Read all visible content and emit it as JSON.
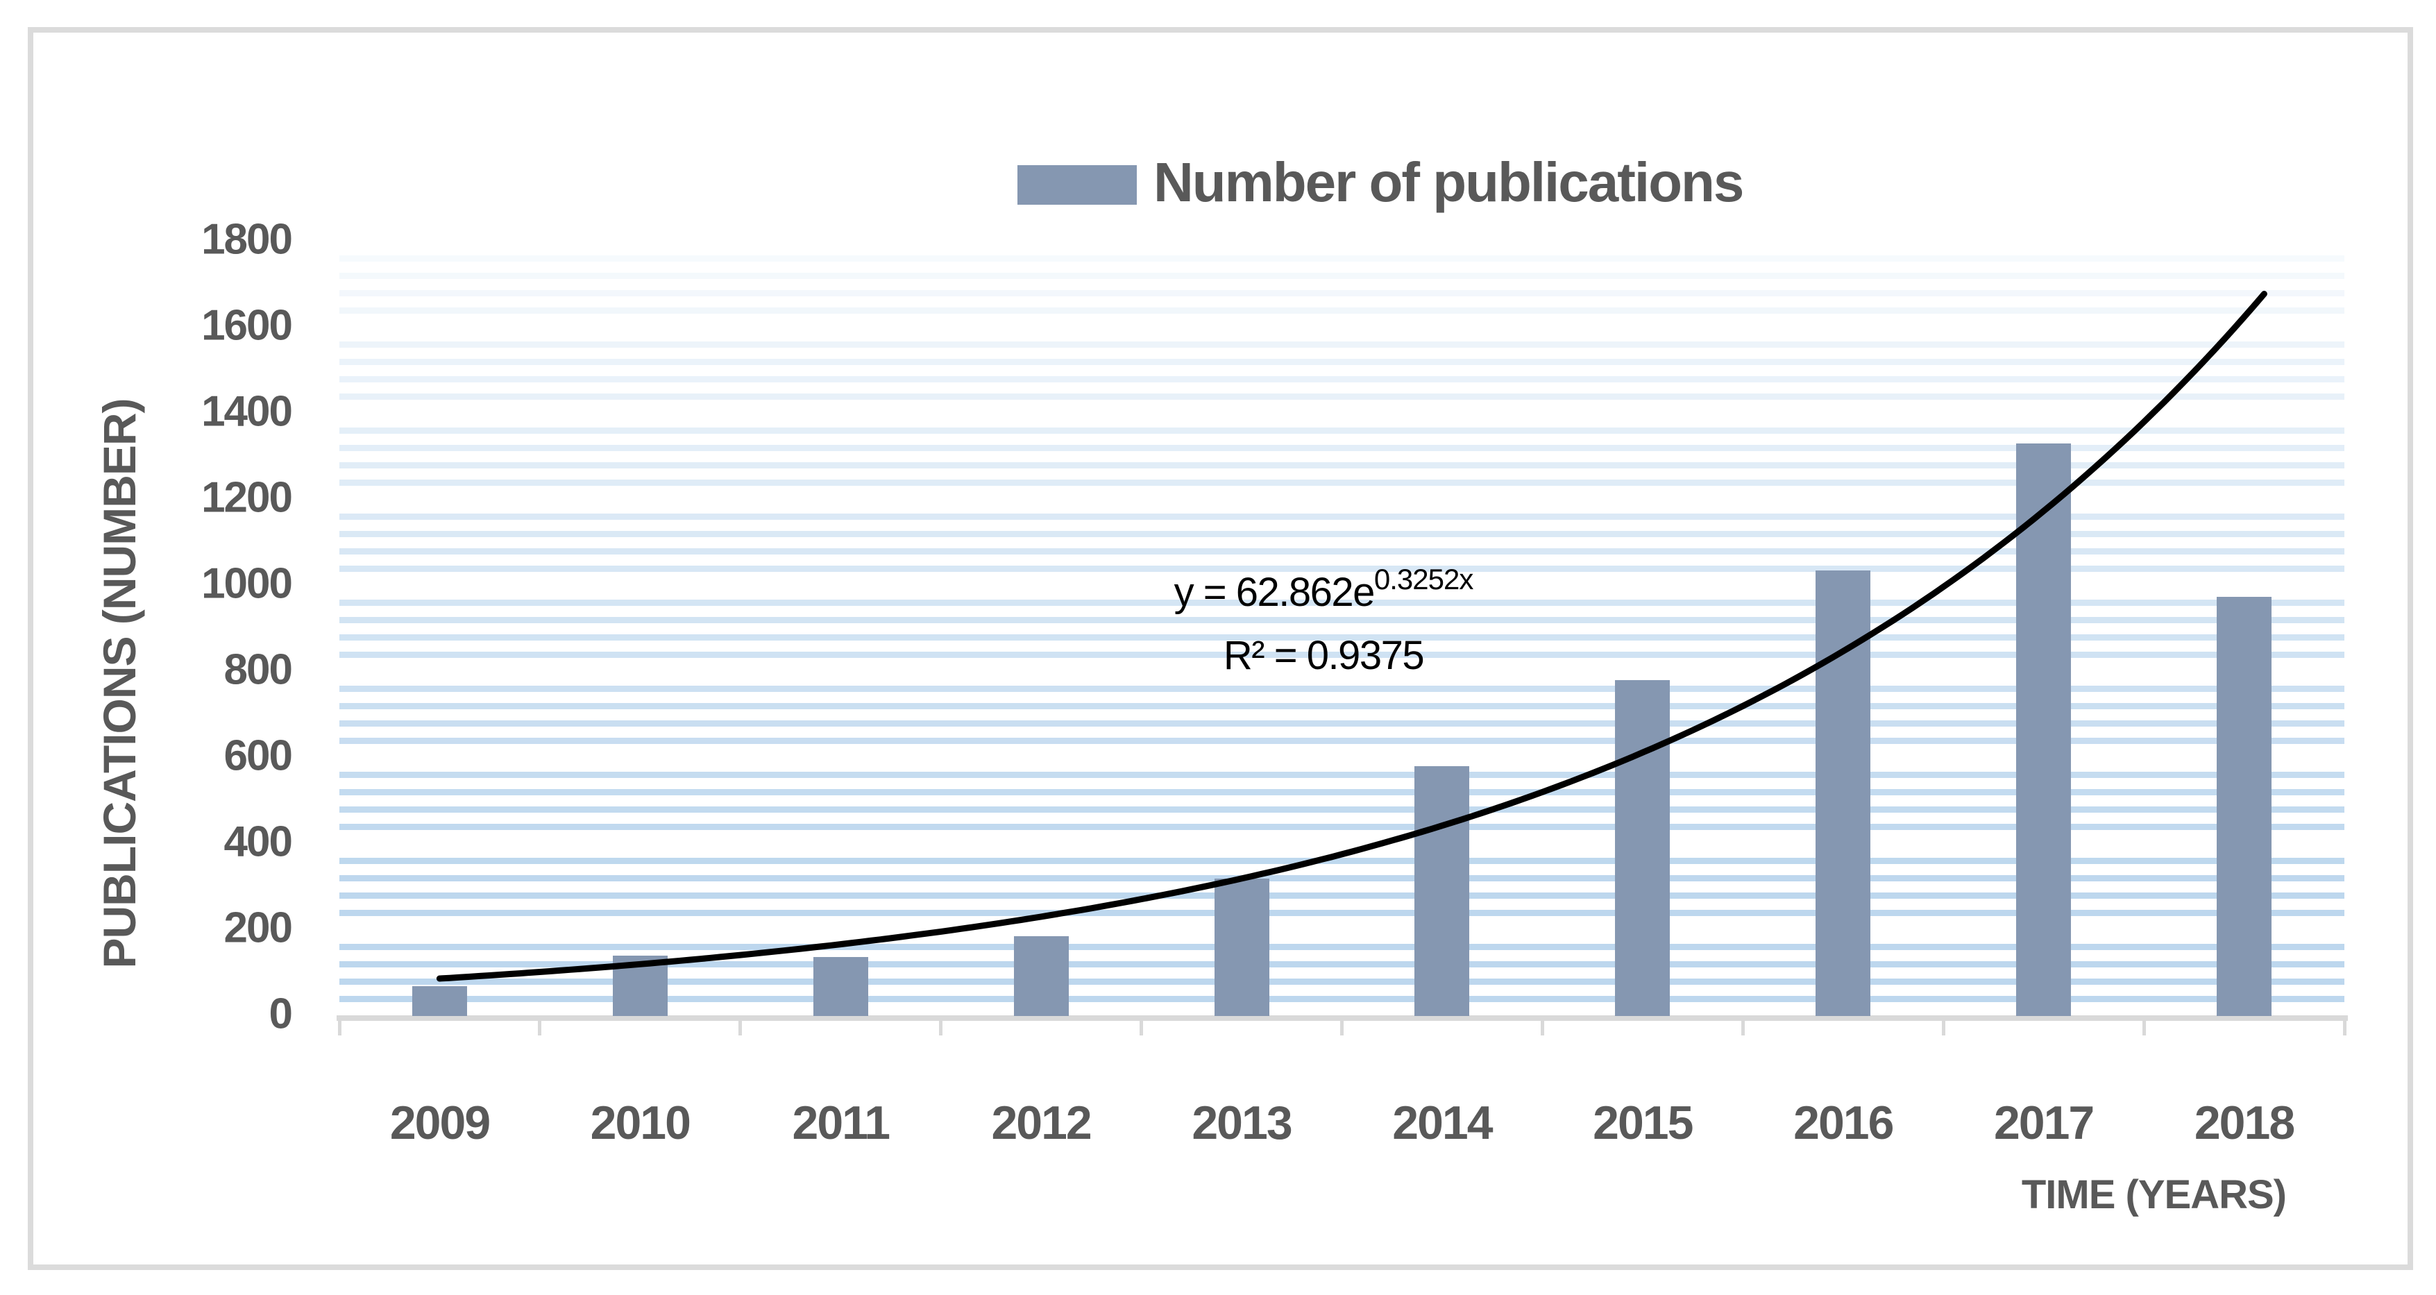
{
  "legend": {
    "label": "Number of publications"
  },
  "axes": {
    "y_title": "PUBLICATIONS (NUMBER)",
    "x_title": "TIME (YEARS)",
    "y_ticks": [
      "0",
      "200",
      "400",
      "600",
      "800",
      "1000",
      "1200",
      "1400",
      "1600",
      "1800"
    ],
    "x_ticks": [
      "2009",
      "2010",
      "2011",
      "2012",
      "2013",
      "2014",
      "2015",
      "2016",
      "2017",
      "2018"
    ]
  },
  "equation": {
    "prefix": "y = 62.862e",
    "exponent": "0.3252x",
    "r_squared": "R² = 0.9375"
  },
  "colors": {
    "bar": "#8597B1",
    "stripe": "#BDD7EE",
    "axis": "#D9D9D9",
    "frame": "#DBDBDB",
    "text": "#595959",
    "trendline": "#000000"
  },
  "chart_data": {
    "type": "bar",
    "title": "Number of publications",
    "categories": [
      "2009",
      "2010",
      "2011",
      "2012",
      "2013",
      "2014",
      "2015",
      "2016",
      "2017",
      "2018"
    ],
    "values": [
      70,
      140,
      137,
      185,
      320,
      580,
      780,
      1035,
      1330,
      975
    ],
    "xlabel": "TIME (YEARS)",
    "ylabel": "PUBLICATIONS (NUMBER)",
    "ylim": [
      0,
      1800
    ],
    "y_major_unit": 200,
    "y_minor_unit": 40,
    "grid": "horizontal-minor-stripes",
    "legend_position": "top-center",
    "trendline": {
      "type": "exponential",
      "equation_text": "y = 62.862e^(0.3252x)",
      "r_squared": 0.9375,
      "coefficient_a": 62.862,
      "coefficient_b": 0.3252,
      "x_index_range": [
        1,
        10
      ]
    }
  }
}
